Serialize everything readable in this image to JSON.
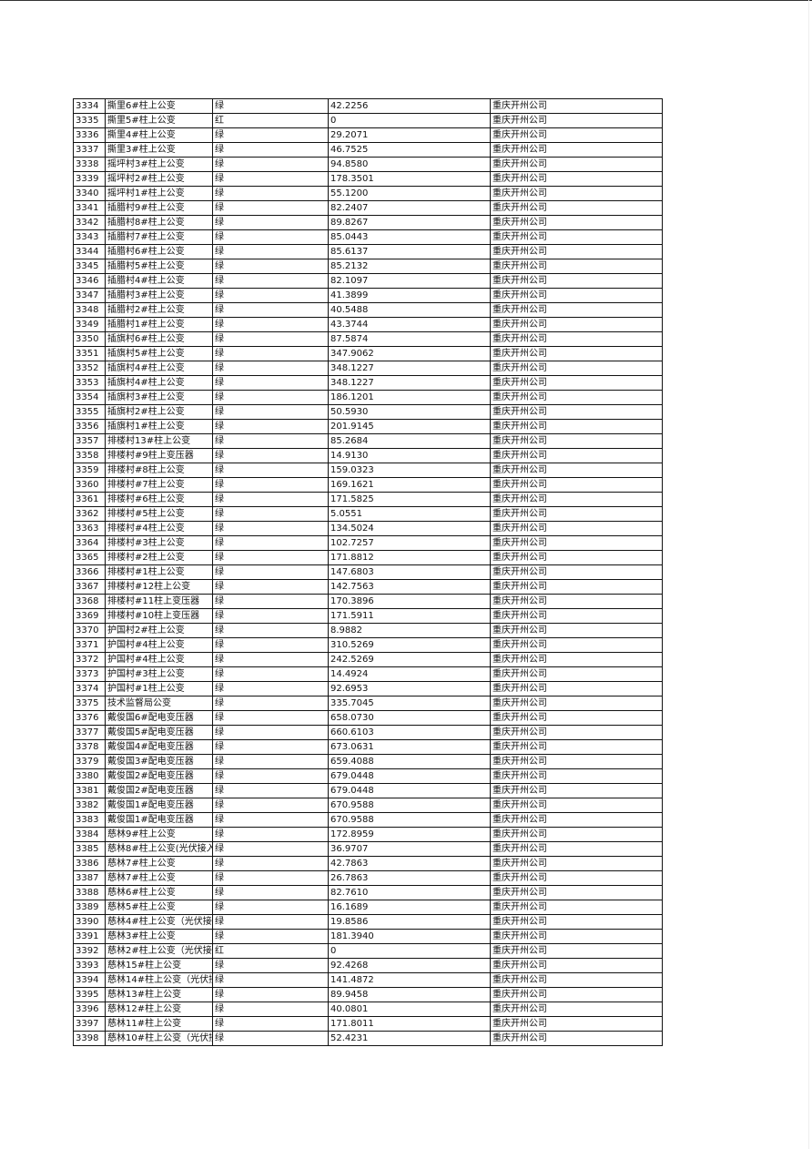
{
  "table": {
    "rows": [
      [
        "3334",
        "撕里6#柱上公变",
        "绿",
        "42.2256",
        "重庆开州公司"
      ],
      [
        "3335",
        "撕里5#柱上公变",
        "红",
        "0",
        "重庆开州公司"
      ],
      [
        "3336",
        "撕里4#柱上公变",
        "绿",
        "29.2071",
        "重庆开州公司"
      ],
      [
        "3337",
        "撕里3#柱上公变",
        "绿",
        "46.7525",
        "重庆开州公司"
      ],
      [
        "3338",
        "摇坪村3#柱上公变",
        "绿",
        "94.8580",
        "重庆开州公司"
      ],
      [
        "3339",
        "摇坪村2#柱上公变",
        "绿",
        "178.3501",
        "重庆开州公司"
      ],
      [
        "3340",
        "摇坪村1#柱上公变",
        "绿",
        "55.1200",
        "重庆开州公司"
      ],
      [
        "3341",
        "插腊村9#柱上公变",
        "绿",
        "82.2407",
        "重庆开州公司"
      ],
      [
        "3342",
        "插腊村8#柱上公变",
        "绿",
        "89.8267",
        "重庆开州公司"
      ],
      [
        "3343",
        "插腊村7#柱上公变",
        "绿",
        "85.0443",
        "重庆开州公司"
      ],
      [
        "3344",
        "插腊村6#柱上公变",
        "绿",
        "85.6137",
        "重庆开州公司"
      ],
      [
        "3345",
        "插腊村5#柱上公变",
        "绿",
        "85.2132",
        "重庆开州公司"
      ],
      [
        "3346",
        "插腊村4#柱上公变",
        "绿",
        "82.1097",
        "重庆开州公司"
      ],
      [
        "3347",
        "插腊村3#柱上公变",
        "绿",
        "41.3899",
        "重庆开州公司"
      ],
      [
        "3348",
        "插腊村2#柱上公变",
        "绿",
        "40.5488",
        "重庆开州公司"
      ],
      [
        "3349",
        "插腊村1#柱上公变",
        "绿",
        "43.3744",
        "重庆开州公司"
      ],
      [
        "3350",
        "插旗村6#柱上公变",
        "绿",
        "87.5874",
        "重庆开州公司"
      ],
      [
        "3351",
        "插旗村5#柱上公变",
        "绿",
        "347.9062",
        "重庆开州公司"
      ],
      [
        "3352",
        "插旗村4#柱上公变",
        "绿",
        "348.1227",
        "重庆开州公司"
      ],
      [
        "3353",
        "插旗村4#柱上公变",
        "绿",
        "348.1227",
        "重庆开州公司"
      ],
      [
        "3354",
        "插旗村3#柱上公变",
        "绿",
        "186.1201",
        "重庆开州公司"
      ],
      [
        "3355",
        "插旗村2#柱上公变",
        "绿",
        "50.5930",
        "重庆开州公司"
      ],
      [
        "3356",
        "插旗村1#柱上公变",
        "绿",
        "201.9145",
        "重庆开州公司"
      ],
      [
        "3357",
        "排楼村13#柱上公变",
        "绿",
        "85.2684",
        "重庆开州公司"
      ],
      [
        "3358",
        "排楼村#9柱上变压器",
        "绿",
        "14.9130",
        "重庆开州公司"
      ],
      [
        "3359",
        "排楼村#8柱上公变",
        "绿",
        "159.0323",
        "重庆开州公司"
      ],
      [
        "3360",
        "排楼村#7柱上公变",
        "绿",
        "169.1621",
        "重庆开州公司"
      ],
      [
        "3361",
        "排楼村#6柱上公变",
        "绿",
        "171.5825",
        "重庆开州公司"
      ],
      [
        "3362",
        "排楼村#5柱上公变",
        "绿",
        "5.0551",
        "重庆开州公司"
      ],
      [
        "3363",
        "排楼村#4柱上公变",
        "绿",
        "134.5024",
        "重庆开州公司"
      ],
      [
        "3364",
        "排楼村#3柱上公变",
        "绿",
        "102.7257",
        "重庆开州公司"
      ],
      [
        "3365",
        "排楼村#2柱上公变",
        "绿",
        "171.8812",
        "重庆开州公司"
      ],
      [
        "3366",
        "排楼村#1柱上公变",
        "绿",
        "147.6803",
        "重庆开州公司"
      ],
      [
        "3367",
        "排楼村#12柱上公变",
        "绿",
        "142.7563",
        "重庆开州公司"
      ],
      [
        "3368",
        "排楼村#11柱上变压器",
        "绿",
        "170.3896",
        "重庆开州公司"
      ],
      [
        "3369",
        "排楼村#10柱上变压器",
        "绿",
        "171.5911",
        "重庆开州公司"
      ],
      [
        "3370",
        "护国村2#柱上公变",
        "绿",
        "8.9882",
        "重庆开州公司"
      ],
      [
        "3371",
        "护国村#4柱上公变",
        "绿",
        "310.5269",
        "重庆开州公司"
      ],
      [
        "3372",
        "护国村#4柱上公变",
        "绿",
        "242.5269",
        "重庆开州公司"
      ],
      [
        "3373",
        "护国村#3柱上公变",
        "绿",
        "14.4924",
        "重庆开州公司"
      ],
      [
        "3374",
        "护国村#1柱上公变",
        "绿",
        "92.6953",
        "重庆开州公司"
      ],
      [
        "3375",
        "技术监督局公变",
        "绿",
        "335.7045",
        "重庆开州公司"
      ],
      [
        "3376",
        "戴俊国6#配电变压器",
        "绿",
        "658.0730",
        "重庆开州公司"
      ],
      [
        "3377",
        "戴俊国5#配电变压器",
        "绿",
        "660.6103",
        "重庆开州公司"
      ],
      [
        "3378",
        "戴俊国4#配电变压器",
        "绿",
        "673.0631",
        "重庆开州公司"
      ],
      [
        "3379",
        "戴俊国3#配电变压器",
        "绿",
        "659.4088",
        "重庆开州公司"
      ],
      [
        "3380",
        "戴俊国2#配电变压器",
        "绿",
        "679.0448",
        "重庆开州公司"
      ],
      [
        "3381",
        "戴俊国2#配电变压器",
        "绿",
        "679.0448",
        "重庆开州公司"
      ],
      [
        "3382",
        "戴俊国1#配电变压器",
        "绿",
        "670.9588",
        "重庆开州公司"
      ],
      [
        "3383",
        "戴俊国1#配电变压器",
        "绿",
        "670.9588",
        "重庆开州公司"
      ],
      [
        "3384",
        "慈林9#柱上公变",
        "绿",
        "172.8959",
        "重庆开州公司"
      ],
      [
        "3385",
        "慈林8#柱上公变(光伏接入",
        "绿",
        "36.9707",
        "重庆开州公司"
      ],
      [
        "3386",
        "慈林7#柱上公变",
        "绿",
        "42.7863",
        "重庆开州公司"
      ],
      [
        "3387",
        "慈林7#柱上公变",
        "绿",
        "26.7863",
        "重庆开州公司"
      ],
      [
        "3388",
        "慈林6#柱上公变",
        "绿",
        "82.7610",
        "重庆开州公司"
      ],
      [
        "3389",
        "慈林5#柱上公变",
        "绿",
        "16.1689",
        "重庆开州公司"
      ],
      [
        "3390",
        "慈林4#柱上公变（光伏接",
        "绿",
        "19.8586",
        "重庆开州公司"
      ],
      [
        "3391",
        "慈林3#柱上公变",
        "绿",
        "181.3940",
        "重庆开州公司"
      ],
      [
        "3392",
        "慈林2#柱上公变（光伏接",
        "红",
        "0",
        "重庆开州公司"
      ],
      [
        "3393",
        "慈林15#柱上公变",
        "绿",
        "92.4268",
        "重庆开州公司"
      ],
      [
        "3394",
        "慈林14#柱上公变（光伏接",
        "绿",
        "141.4872",
        "重庆开州公司"
      ],
      [
        "3395",
        "慈林13#柱上公变",
        "绿",
        "89.9458",
        "重庆开州公司"
      ],
      [
        "3396",
        "慈林12#柱上公变",
        "绿",
        "40.0801",
        "重庆开州公司"
      ],
      [
        "3397",
        "慈林11#柱上公变",
        "绿",
        "171.8011",
        "重庆开州公司"
      ],
      [
        "3398",
        "慈林10#柱上公变（光伏接",
        "绿",
        "52.4231",
        "重庆开州公司"
      ]
    ]
  }
}
